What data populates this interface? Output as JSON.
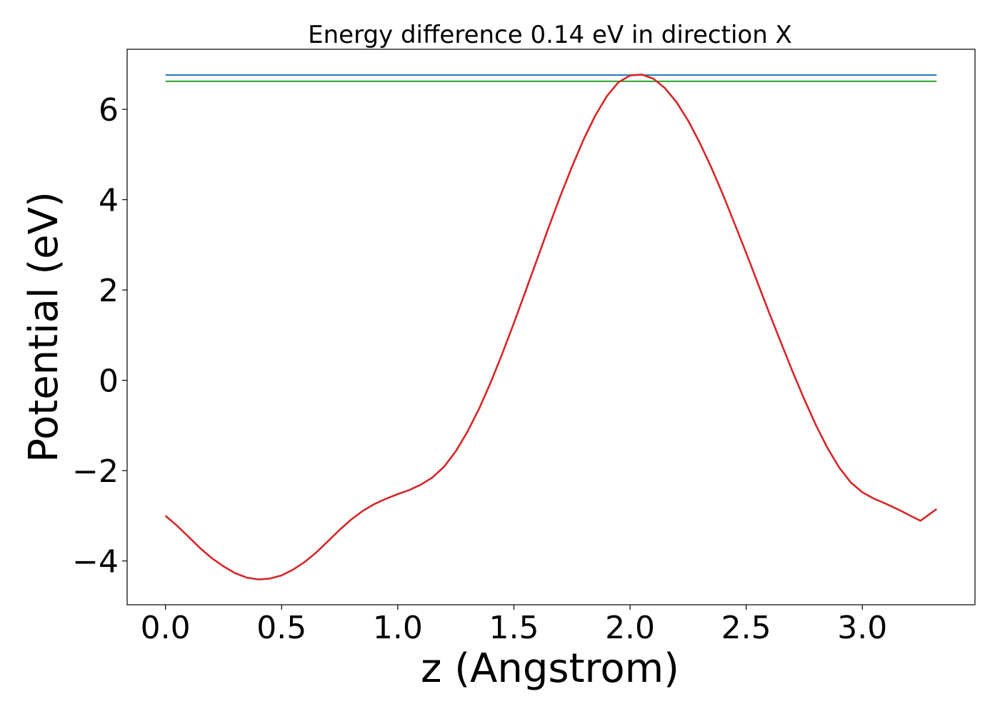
{
  "chart_data": {
    "type": "line",
    "title": "Energy difference 0.14 eV in direction X",
    "xlabel": "z (Angstrom)",
    "ylabel": "Potential (eV)",
    "xlim": [
      -0.165,
      3.485
    ],
    "ylim": [
      -4.97,
      7.33
    ],
    "xticks": [
      0.0,
      0.5,
      1.0,
      1.5,
      2.0,
      2.5,
      3.0
    ],
    "xtick_labels": [
      "0.0",
      "0.5",
      "1.0",
      "1.5",
      "2.0",
      "2.5",
      "3.0"
    ],
    "yticks": [
      -4,
      -2,
      0,
      2,
      4,
      6
    ],
    "ytick_labels": [
      "−4",
      "−2",
      "0",
      "2",
      "4",
      "6"
    ],
    "grid": false,
    "series": [
      {
        "color": "#1f77b4",
        "x": [
          0.0,
          3.32
        ],
        "y": [
          6.76,
          6.76
        ]
      },
      {
        "color": "#2ca02c",
        "x": [
          0.0,
          3.32
        ],
        "y": [
          6.62,
          6.62
        ]
      },
      {
        "color": "#d62728",
        "x": [
          0.0,
          0.05,
          0.1,
          0.15,
          0.2,
          0.25,
          0.3,
          0.35,
          0.4,
          0.45,
          0.5,
          0.55,
          0.6,
          0.65,
          0.7,
          0.75,
          0.8,
          0.85,
          0.9,
          0.95,
          1.0,
          1.05,
          1.1,
          1.15,
          1.2,
          1.25,
          1.3,
          1.35,
          1.4,
          1.45,
          1.5,
          1.55,
          1.6,
          1.65,
          1.7,
          1.75,
          1.8,
          1.85,
          1.9,
          1.95,
          2.0,
          2.05,
          2.1,
          2.15,
          2.2,
          2.25,
          2.3,
          2.35,
          2.4,
          2.45,
          2.5,
          2.55,
          2.6,
          2.65,
          2.7,
          2.75,
          2.8,
          2.85,
          2.9,
          2.95,
          3.0,
          3.05,
          3.1,
          3.15,
          3.2,
          3.25,
          3.32
        ],
        "y": [
          -3.0,
          -3.22,
          -3.47,
          -3.72,
          -3.94,
          -4.12,
          -4.27,
          -4.37,
          -4.41,
          -4.39,
          -4.32,
          -4.19,
          -4.02,
          -3.81,
          -3.56,
          -3.31,
          -3.08,
          -2.89,
          -2.74,
          -2.62,
          -2.52,
          -2.43,
          -2.31,
          -2.15,
          -1.91,
          -1.57,
          -1.14,
          -0.63,
          -0.05,
          0.59,
          1.27,
          1.97,
          2.68,
          3.39,
          4.08,
          4.73,
          5.33,
          5.86,
          6.29,
          6.6,
          6.75,
          6.77,
          6.68,
          6.47,
          6.16,
          5.75,
          5.26,
          4.71,
          4.11,
          3.47,
          2.82,
          2.15,
          1.48,
          0.83,
          0.19,
          -0.42,
          -0.99,
          -1.5,
          -1.93,
          -2.26,
          -2.48,
          -2.62,
          -2.73,
          -2.85,
          -2.98,
          -3.11,
          -2.85
        ]
      }
    ]
  }
}
